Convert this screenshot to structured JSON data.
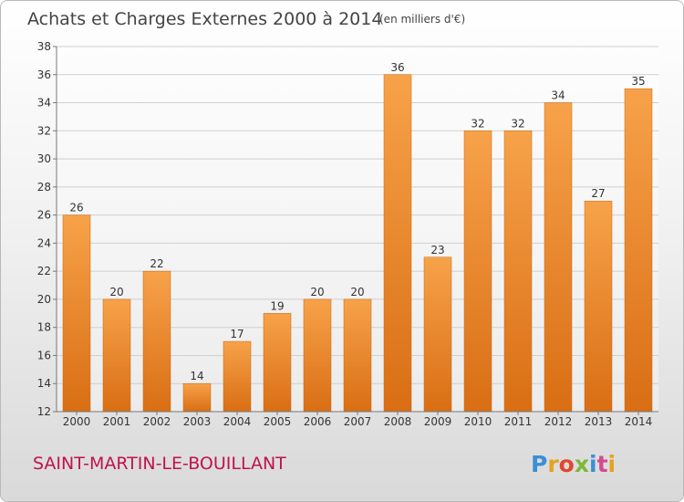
{
  "chart_data": {
    "type": "bar",
    "title": "Achats et Charges Externes 2000 à 2014",
    "subtitle": "(en milliers d'€)",
    "categories": [
      "2000",
      "2001",
      "2002",
      "2003",
      "2004",
      "2005",
      "2006",
      "2007",
      "2008",
      "2009",
      "2010",
      "2011",
      "2012",
      "2013",
      "2014"
    ],
    "values": [
      26,
      20,
      22,
      14,
      17,
      19,
      20,
      20,
      36,
      23,
      32,
      32,
      34,
      27,
      35
    ],
    "ylim": [
      12,
      38
    ],
    "yticks": [
      12,
      14,
      16,
      18,
      20,
      22,
      24,
      26,
      28,
      30,
      32,
      34,
      36,
      38
    ],
    "grid": true,
    "bar_color": "#f0913a",
    "xlabel": "",
    "ylabel": ""
  },
  "footer": {
    "place": "SAINT-MARTIN-LE-BOUILLANT",
    "brand_letters": [
      "P",
      "r",
      "o",
      "x",
      "i",
      "t",
      "i"
    ]
  },
  "colors": {
    "place": "#c0134a",
    "brand": [
      "#3a8fd6",
      "#e5a221",
      "#e3462e",
      "#7db83a",
      "#3a8fd6",
      "#d44b8f",
      "#e5a221"
    ]
  }
}
